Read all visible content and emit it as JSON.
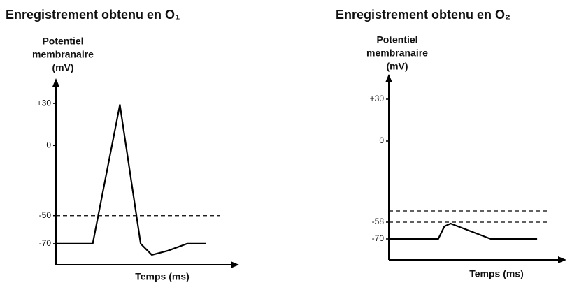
{
  "chart_data": [
    {
      "type": "line",
      "title": "Enregistrement obtenu en O₁",
      "ylabel": [
        "Potentiel",
        "membranaire",
        "(mV)"
      ],
      "xlabel": "Temps (ms)",
      "x": [
        0,
        2.3,
        4.0,
        5.3,
        6.0,
        7.0,
        8.2,
        9.4
      ],
      "values": [
        -70,
        -70,
        29,
        -70,
        -78,
        -75,
        -70,
        -70
      ],
      "color": "#000000",
      "xlim": [
        0,
        10.5
      ],
      "ylim": [
        -85,
        40
      ],
      "yticks": [
        {
          "value": 30,
          "label": "+30"
        },
        0,
        -50,
        -70
      ],
      "dashed_lines": [
        -50
      ]
    },
    {
      "type": "line",
      "title": "Enregistrement obtenu en O₂",
      "ylabel": [
        "Potentiel",
        "membranaire",
        "(mV)"
      ],
      "xlabel": "Temps (ms)",
      "x": [
        0,
        3.2,
        3.6,
        4.0,
        6.6,
        9.6
      ],
      "values": [
        -70,
        -70,
        -61,
        -59,
        -70,
        -70
      ],
      "color": "#000000",
      "xlim": [
        0,
        10.5
      ],
      "ylim": [
        -85,
        40
      ],
      "yticks": [
        {
          "value": 30,
          "label": "+30"
        },
        0,
        -58,
        -70
      ],
      "dashed_lines": [
        -50,
        -58
      ]
    }
  ]
}
